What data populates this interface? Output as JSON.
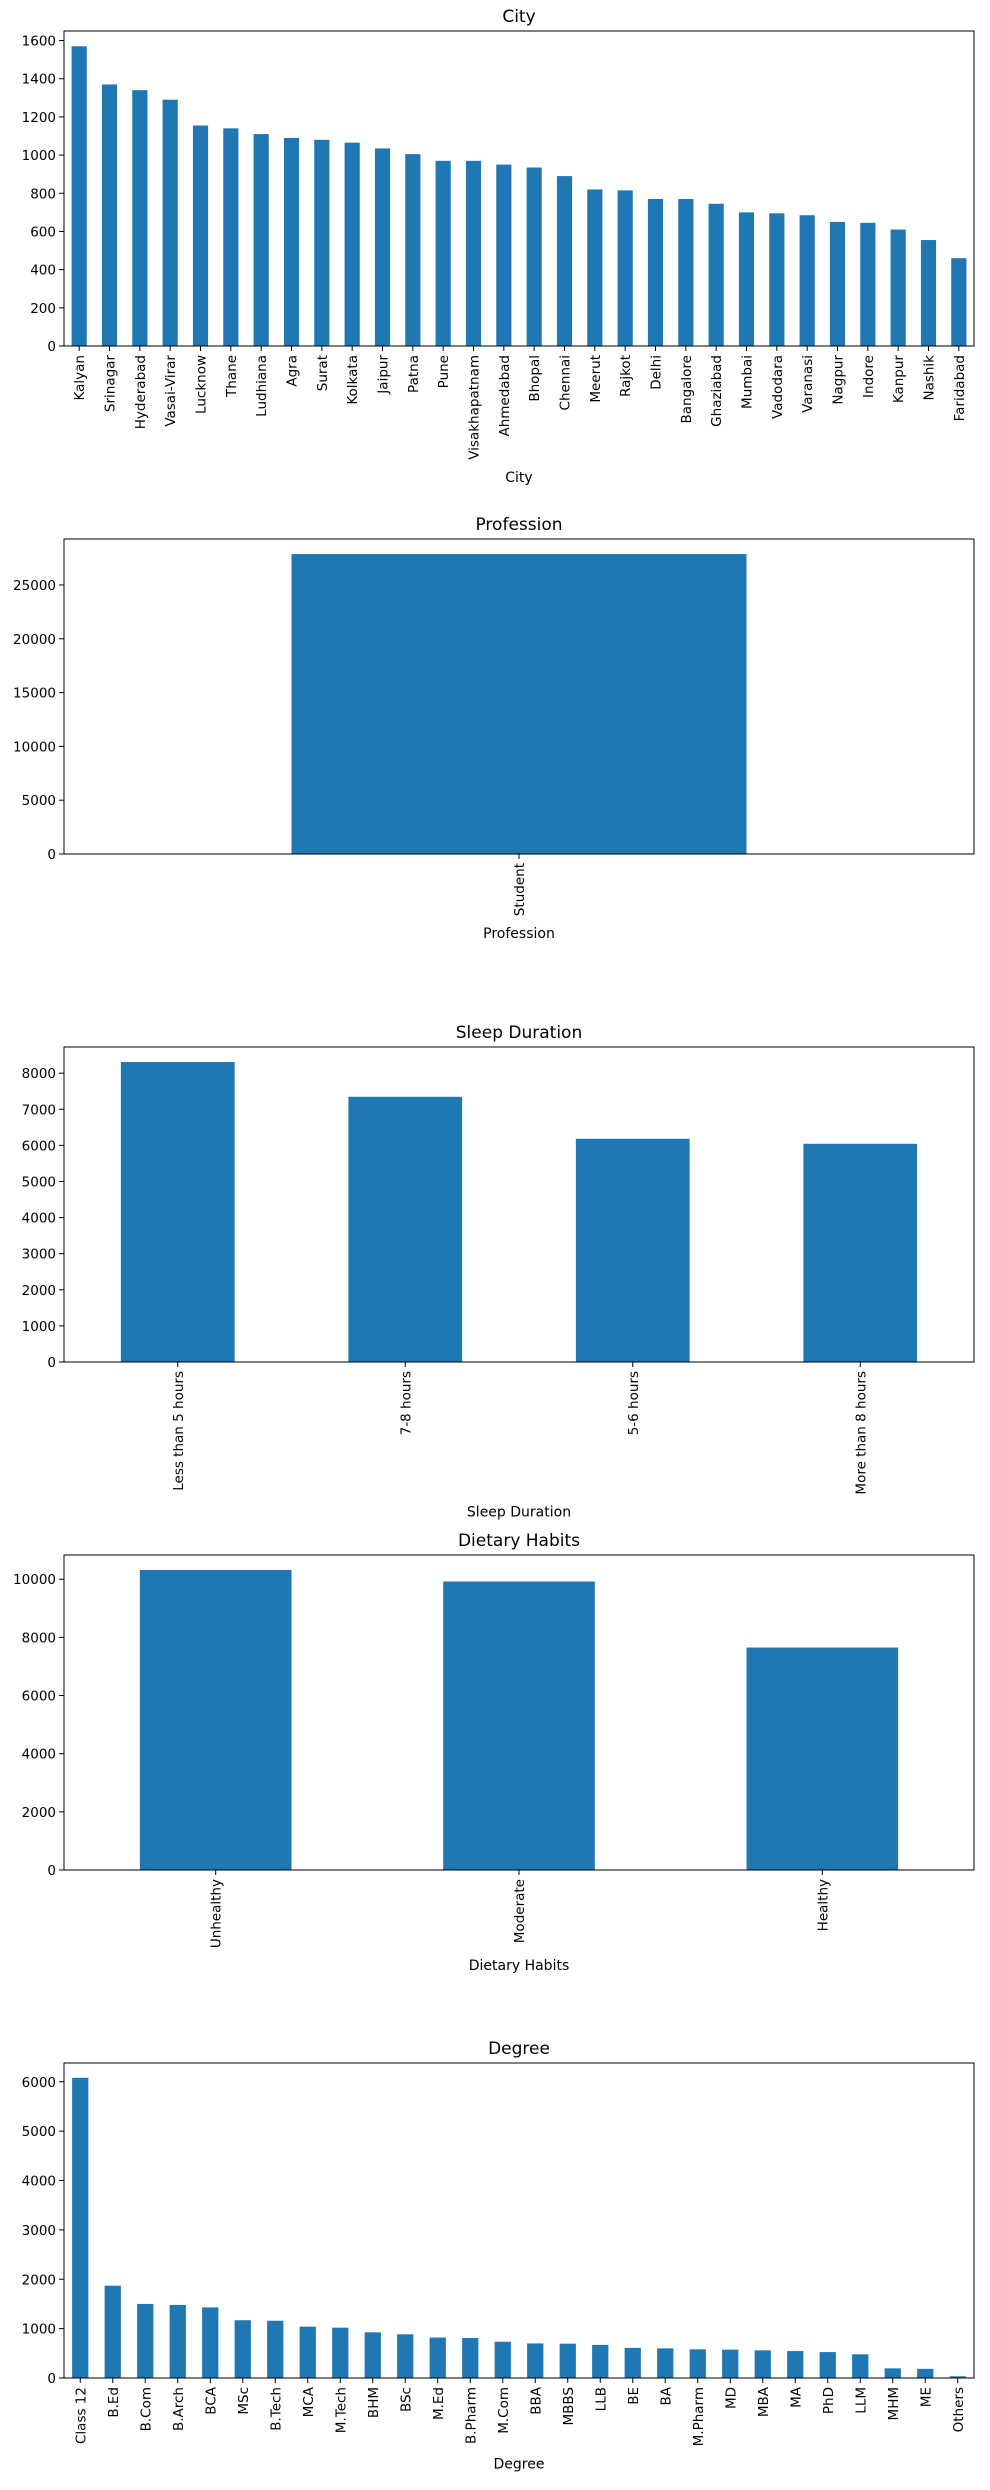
{
  "charts": [
    {
      "chart_data": {
        "type": "bar",
        "title": "City",
        "xlabel": "City",
        "ylabel": "",
        "categories": [
          "Kalyan",
          "Srinagar",
          "Hyderabad",
          "Vasai-Virar",
          "Lucknow",
          "Thane",
          "Ludhiana",
          "Agra",
          "Surat",
          "Kolkata",
          "Jaipur",
          "Patna",
          "Pune",
          "Visakhapatnam",
          "Ahmedabad",
          "Bhopal",
          "Chennai",
          "Meerut",
          "Rajkot",
          "Delhi",
          "Bangalore",
          "Ghaziabad",
          "Mumbai",
          "Vadodara",
          "Varanasi",
          "Nagpur",
          "Indore",
          "Kanpur",
          "Nashik",
          "Faridabad"
        ],
        "values": [
          1570,
          1370,
          1340,
          1290,
          1155,
          1140,
          1110,
          1090,
          1080,
          1065,
          1035,
          1005,
          970,
          970,
          950,
          935,
          890,
          820,
          815,
          770,
          770,
          745,
          700,
          695,
          685,
          650,
          645,
          610,
          555,
          460
        ],
        "yticks": [
          0,
          200,
          400,
          600,
          800,
          1000,
          1200,
          1400,
          1600
        ],
        "ylim": [
          0,
          1650
        ],
        "color": "#1f77b4",
        "grid": false
      }
    },
    {
      "chart_data": {
        "type": "bar",
        "title": "Profession",
        "xlabel": "Profession",
        "ylabel": "",
        "categories": [
          "Student"
        ],
        "values": [
          27870
        ],
        "yticks": [
          0,
          5000,
          10000,
          15000,
          20000,
          25000
        ],
        "ylim": [
          0,
          29270
        ],
        "color": "#1f77b4",
        "grid": false
      }
    },
    {
      "chart_data": {
        "type": "bar",
        "title": "Sleep Duration",
        "xlabel": "Sleep Duration",
        "ylabel": "",
        "categories": [
          "Less than 5 hours",
          "7-8 hours",
          "5-6 hours",
          "More than 8 hours"
        ],
        "values": [
          8310,
          7346,
          6183,
          6044
        ],
        "yticks": [
          0,
          1000,
          2000,
          3000,
          4000,
          5000,
          6000,
          7000,
          8000
        ],
        "ylim": [
          0,
          8725
        ],
        "color": "#1f77b4",
        "grid": false
      }
    },
    {
      "chart_data": {
        "type": "bar",
        "title": "Dietary Habits",
        "xlabel": "Dietary Habits",
        "ylabel": "",
        "categories": [
          "Unhealthy",
          "Moderate",
          "Healthy"
        ],
        "values": [
          10317,
          9921,
          7651
        ],
        "yticks": [
          0,
          2000,
          4000,
          6000,
          8000,
          10000
        ],
        "ylim": [
          0,
          10833
        ],
        "color": "#1f77b4",
        "grid": false
      }
    },
    {
      "chart_data": {
        "type": "bar",
        "title": "Degree",
        "xlabel": "Degree",
        "ylabel": "",
        "categories": [
          "Class 12",
          "B.Ed",
          "B.Com",
          "B.Arch",
          "BCA",
          "MSc",
          "B.Tech",
          "MCA",
          "M.Tech",
          "BHM",
          "BSc",
          "M.Ed",
          "B.Pharm",
          "M.Com",
          "BBA",
          "MBBS",
          "LLB",
          "BE",
          "BA",
          "M.Pharm",
          "MD",
          "MBA",
          "MA",
          "PhD",
          "LLM",
          "MHM",
          "ME",
          "Others"
        ],
        "values": [
          6080,
          1870,
          1500,
          1480,
          1430,
          1170,
          1160,
          1040,
          1020,
          925,
          885,
          820,
          810,
          735,
          700,
          695,
          670,
          610,
          600,
          580,
          575,
          560,
          545,
          525,
          480,
          195,
          185,
          35
        ],
        "yticks": [
          0,
          1000,
          2000,
          3000,
          4000,
          5000,
          6000
        ],
        "ylim": [
          0,
          6380
        ],
        "color": "#1f77b4",
        "grid": false
      }
    }
  ]
}
